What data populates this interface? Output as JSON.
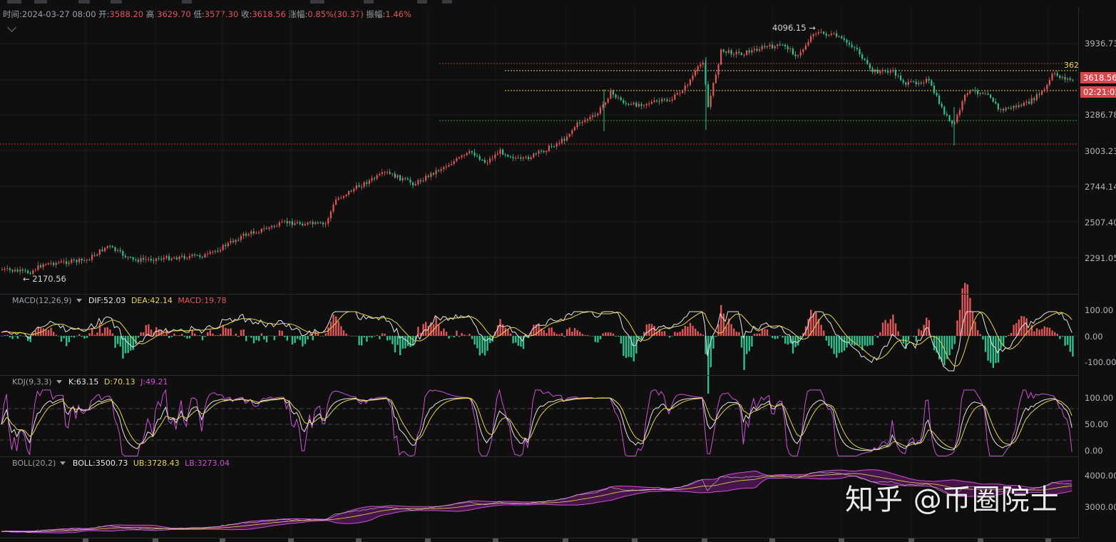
{
  "info_bar": {
    "time_label": "时间:",
    "time": "2024-03-27 08:00",
    "open_label": "开:",
    "open": "3588.20",
    "high_label": "高:",
    "high": "3629.70",
    "low_label": "低:",
    "low": "3577.30",
    "close_label": "收:",
    "close": "3618.56",
    "change_label": "涨幅:",
    "change": "0.85%(30.37)",
    "amplitude_label": "振幅:",
    "amplitude": "1.46%"
  },
  "main_chart": {
    "high_marker": "4096.15",
    "low_marker": "2170.56",
    "level_label": "362",
    "price_tag": "3618.56",
    "countdown_tag": "02:21:03",
    "y_ticks": [
      "3936.73",
      "3286.78",
      "3003.23",
      "2744.14",
      "2507.40",
      "2291.05"
    ]
  },
  "macd": {
    "title": "MACD(12,26,9)",
    "dif_label": "DIF:",
    "dif": "52.03",
    "dea_label": "DEA:",
    "dea": "42.14",
    "macd_label": "MACD:",
    "macd": "19.78",
    "y_ticks": [
      "100.00",
      "0.00",
      "-100.00"
    ]
  },
  "kdj": {
    "title": "KDJ(9,3,3)",
    "k_label": "K:",
    "k": "63.15",
    "d_label": "D:",
    "d": "70.13",
    "j_label": "J:",
    "j": "49.21",
    "y_ticks": [
      "100.00",
      "50.00",
      "0.00"
    ]
  },
  "boll": {
    "title": "BOLL(20,2)",
    "boll_label": "BOLL:",
    "boll": "3500.73",
    "ub_label": "UB:",
    "ub": "3728.43",
    "lb_label": "LB:",
    "lb": "3273.04",
    "y_ticks": [
      "4000.00",
      "3000.00"
    ]
  },
  "watermark": "知乎 @币圈院士",
  "colors": {
    "up": "#e05656",
    "down": "#2fbf8a",
    "yellow": "#e8d44d",
    "magenta": "#d14fd6",
    "white_line": "#e6e6e6",
    "bg": "#0f0f10",
    "red_level": "#b83a3a",
    "green_level": "#3a9a3a"
  }
}
